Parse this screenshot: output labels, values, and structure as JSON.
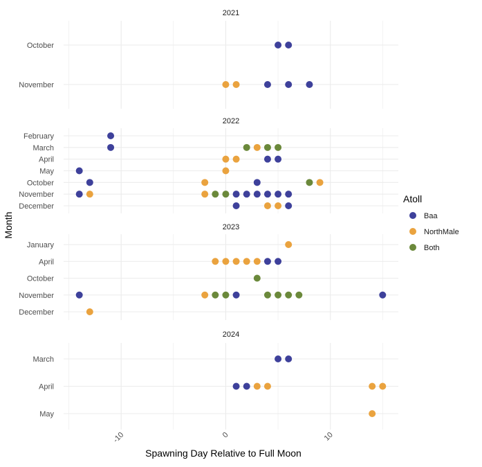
{
  "chart_data": {
    "type": "scatter",
    "xlabel": "Spawning Day Relative to Full Moon",
    "ylabel": "Month",
    "xlim": [
      -15.5,
      16.5
    ],
    "x_ticks": [
      -10,
      0,
      10
    ],
    "x_tick_labels": [
      "-10",
      "0",
      "10"
    ],
    "grid": true,
    "legend": {
      "title": "Atoll",
      "position": "right",
      "entries": [
        {
          "name": "Baa",
          "color": "#2E3192"
        },
        {
          "name": "NorthMale",
          "color": "#E89B2F"
        },
        {
          "name": "Both",
          "color": "#5E7F2A"
        }
      ]
    },
    "facets": [
      {
        "title": "2021",
        "categories": [
          "October",
          "November"
        ],
        "points": [
          {
            "x": 5,
            "y": "October",
            "atoll": "Baa"
          },
          {
            "x": 6,
            "y": "October",
            "atoll": "Baa"
          },
          {
            "x": 0,
            "y": "November",
            "atoll": "NorthMale"
          },
          {
            "x": 1,
            "y": "November",
            "atoll": "NorthMale"
          },
          {
            "x": 4,
            "y": "November",
            "atoll": "Baa"
          },
          {
            "x": 6,
            "y": "November",
            "atoll": "Baa"
          },
          {
            "x": 8,
            "y": "November",
            "atoll": "Baa"
          }
        ]
      },
      {
        "title": "2022",
        "categories": [
          "February",
          "March",
          "April",
          "May",
          "October",
          "November",
          "December"
        ],
        "points": [
          {
            "x": -11,
            "y": "February",
            "atoll": "Baa"
          },
          {
            "x": -11,
            "y": "March",
            "atoll": "Baa"
          },
          {
            "x": 2,
            "y": "March",
            "atoll": "Both"
          },
          {
            "x": 3,
            "y": "March",
            "atoll": "NorthMale"
          },
          {
            "x": 4,
            "y": "March",
            "atoll": "Both"
          },
          {
            "x": 5,
            "y": "March",
            "atoll": "Both"
          },
          {
            "x": 0,
            "y": "April",
            "atoll": "NorthMale"
          },
          {
            "x": 1,
            "y": "April",
            "atoll": "NorthMale"
          },
          {
            "x": 4,
            "y": "April",
            "atoll": "Baa"
          },
          {
            "x": 5,
            "y": "April",
            "atoll": "Baa"
          },
          {
            "x": -14,
            "y": "May",
            "atoll": "Baa"
          },
          {
            "x": 0,
            "y": "May",
            "atoll": "NorthMale"
          },
          {
            "x": -13,
            "y": "October",
            "atoll": "Baa"
          },
          {
            "x": -2,
            "y": "October",
            "atoll": "NorthMale"
          },
          {
            "x": 3,
            "y": "October",
            "atoll": "Baa"
          },
          {
            "x": 8,
            "y": "October",
            "atoll": "Both"
          },
          {
            "x": 9,
            "y": "October",
            "atoll": "NorthMale"
          },
          {
            "x": -14,
            "y": "November",
            "atoll": "Baa"
          },
          {
            "x": -13,
            "y": "November",
            "atoll": "NorthMale"
          },
          {
            "x": -2,
            "y": "November",
            "atoll": "NorthMale"
          },
          {
            "x": -1,
            "y": "November",
            "atoll": "Both"
          },
          {
            "x": 0,
            "y": "November",
            "atoll": "Both"
          },
          {
            "x": 1,
            "y": "November",
            "atoll": "Baa"
          },
          {
            "x": 2,
            "y": "November",
            "atoll": "Baa"
          },
          {
            "x": 3,
            "y": "November",
            "atoll": "Baa"
          },
          {
            "x": 4,
            "y": "November",
            "atoll": "Baa"
          },
          {
            "x": 5,
            "y": "November",
            "atoll": "Baa"
          },
          {
            "x": 6,
            "y": "November",
            "atoll": "Baa"
          },
          {
            "x": 1,
            "y": "December",
            "atoll": "Baa"
          },
          {
            "x": 4,
            "y": "December",
            "atoll": "NorthMale"
          },
          {
            "x": 5,
            "y": "December",
            "atoll": "NorthMale"
          },
          {
            "x": 6,
            "y": "December",
            "atoll": "Baa"
          }
        ]
      },
      {
        "title": "2023",
        "categories": [
          "January",
          "April",
          "October",
          "November",
          "December"
        ],
        "points": [
          {
            "x": 6,
            "y": "January",
            "atoll": "NorthMale"
          },
          {
            "x": -1,
            "y": "April",
            "atoll": "NorthMale"
          },
          {
            "x": 0,
            "y": "April",
            "atoll": "NorthMale"
          },
          {
            "x": 1,
            "y": "April",
            "atoll": "NorthMale"
          },
          {
            "x": 2,
            "y": "April",
            "atoll": "NorthMale"
          },
          {
            "x": 3,
            "y": "April",
            "atoll": "NorthMale"
          },
          {
            "x": 4,
            "y": "April",
            "atoll": "Baa"
          },
          {
            "x": 5,
            "y": "April",
            "atoll": "Baa"
          },
          {
            "x": 3,
            "y": "October",
            "atoll": "Both"
          },
          {
            "x": -14,
            "y": "November",
            "atoll": "Baa"
          },
          {
            "x": -2,
            "y": "November",
            "atoll": "NorthMale"
          },
          {
            "x": -1,
            "y": "November",
            "atoll": "Both"
          },
          {
            "x": 0,
            "y": "November",
            "atoll": "Both"
          },
          {
            "x": 1,
            "y": "November",
            "atoll": "Baa"
          },
          {
            "x": 4,
            "y": "November",
            "atoll": "Both"
          },
          {
            "x": 5,
            "y": "November",
            "atoll": "Both"
          },
          {
            "x": 6,
            "y": "November",
            "atoll": "Both"
          },
          {
            "x": 7,
            "y": "November",
            "atoll": "Both"
          },
          {
            "x": 15,
            "y": "November",
            "atoll": "Baa"
          },
          {
            "x": -13,
            "y": "December",
            "atoll": "NorthMale"
          }
        ]
      },
      {
        "title": "2024",
        "categories": [
          "March",
          "April",
          "May"
        ],
        "points": [
          {
            "x": 5,
            "y": "March",
            "atoll": "Baa"
          },
          {
            "x": 6,
            "y": "March",
            "atoll": "Baa"
          },
          {
            "x": 1,
            "y": "April",
            "atoll": "Baa"
          },
          {
            "x": 2,
            "y": "April",
            "atoll": "Baa"
          },
          {
            "x": 3,
            "y": "April",
            "atoll": "NorthMale"
          },
          {
            "x": 4,
            "y": "April",
            "atoll": "NorthMale"
          },
          {
            "x": 14,
            "y": "April",
            "atoll": "NorthMale"
          },
          {
            "x": 15,
            "y": "April",
            "atoll": "NorthMale"
          },
          {
            "x": 14,
            "y": "May",
            "atoll": "NorthMale"
          }
        ]
      }
    ]
  }
}
